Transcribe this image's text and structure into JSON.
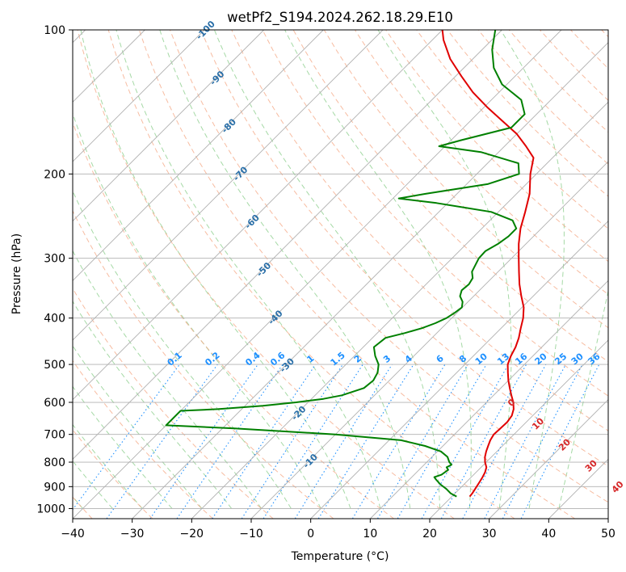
{
  "chart_data": {
    "type": "line",
    "subtype": "skew-t log-p",
    "title": "wetPf2_S194.2024.262.18.29.E10",
    "xlabel": "Temperature (°C)",
    "ylabel": "Pressure (hPa)",
    "xlim": [
      -40,
      50
    ],
    "ylim": [
      1050,
      100
    ],
    "yscale": "log",
    "x_ticks": [
      -40,
      -30,
      -20,
      -10,
      0,
      10,
      20,
      30,
      40,
      50
    ],
    "y_ticks": [
      1000,
      900,
      800,
      700,
      600,
      500,
      400,
      300,
      200,
      100
    ],
    "grid": true,
    "skew_degrees": 45,
    "series": [
      {
        "name": "",
        "color": "#e00000",
        "points": [
          [
            944,
            23.0
          ],
          [
            930,
            22.9
          ],
          [
            900,
            22.5
          ],
          [
            880,
            22.2
          ],
          [
            860,
            21.9
          ],
          [
            840,
            21.5
          ],
          [
            820,
            20.9
          ],
          [
            800,
            19.8
          ],
          [
            780,
            18.9
          ],
          [
            760,
            18.2
          ],
          [
            740,
            17.6
          ],
          [
            720,
            17.0
          ],
          [
            700,
            16.6
          ],
          [
            680,
            16.7
          ],
          [
            660,
            16.8
          ],
          [
            640,
            16.5
          ],
          [
            620,
            15.7
          ],
          [
            600,
            14.5
          ],
          [
            580,
            13.0
          ],
          [
            560,
            11.5
          ],
          [
            540,
            10.0
          ],
          [
            520,
            8.6
          ],
          [
            500,
            7.2
          ],
          [
            480,
            6.3
          ],
          [
            460,
            5.6
          ],
          [
            440,
            4.6
          ],
          [
            420,
            3.3
          ],
          [
            400,
            2.0
          ],
          [
            380,
            0.3
          ],
          [
            360,
            -2.0
          ],
          [
            340,
            -4.3
          ],
          [
            320,
            -6.5
          ],
          [
            300,
            -8.8
          ],
          [
            280,
            -11.2
          ],
          [
            260,
            -13.5
          ],
          [
            240,
            -15.5
          ],
          [
            220,
            -17.8
          ],
          [
            200,
            -21.0
          ],
          [
            185,
            -23.2
          ],
          [
            175,
            -26.4
          ],
          [
            165,
            -30.0
          ],
          [
            155,
            -34.6
          ],
          [
            145,
            -39.5
          ],
          [
            135,
            -44.4
          ],
          [
            125,
            -49.0
          ],
          [
            115,
            -53.8
          ],
          [
            105,
            -58.1
          ],
          [
            100,
            -60.0
          ]
        ]
      },
      {
        "name": "",
        "color": "#008000",
        "points": [
          [
            944,
            20.8
          ],
          [
            930,
            19.3
          ],
          [
            910,
            17.8
          ],
          [
            890,
            16.0
          ],
          [
            870,
            14.5
          ],
          [
            860,
            13.8
          ],
          [
            850,
            14.6
          ],
          [
            830,
            14.9
          ],
          [
            820,
            14.2
          ],
          [
            810,
            14.6
          ],
          [
            800,
            13.8
          ],
          [
            780,
            12.6
          ],
          [
            760,
            10.6
          ],
          [
            740,
            7.0
          ],
          [
            720,
            2.0
          ],
          [
            700,
            -10.0
          ],
          [
            680,
            -28.0
          ],
          [
            670,
            -40.0
          ],
          [
            625,
            -40.0
          ],
          [
            620,
            -34.0
          ],
          [
            610,
            -27.0
          ],
          [
            600,
            -22.0
          ],
          [
            590,
            -18.0
          ],
          [
            580,
            -15.5
          ],
          [
            560,
            -13.0
          ],
          [
            540,
            -12.7
          ],
          [
            520,
            -13.3
          ],
          [
            500,
            -14.5
          ],
          [
            480,
            -16.5
          ],
          [
            460,
            -18.2
          ],
          [
            440,
            -17.8
          ],
          [
            430,
            -15.4
          ],
          [
            420,
            -13.3
          ],
          [
            410,
            -11.9
          ],
          [
            400,
            -10.9
          ],
          [
            390,
            -10.4
          ],
          [
            380,
            -10.1
          ],
          [
            370,
            -10.9
          ],
          [
            360,
            -12.3
          ],
          [
            350,
            -13.0
          ],
          [
            340,
            -12.8
          ],
          [
            330,
            -13.2
          ],
          [
            320,
            -14.4
          ],
          [
            300,
            -15.5
          ],
          [
            290,
            -15.6
          ],
          [
            280,
            -14.7
          ],
          [
            270,
            -14.2
          ],
          [
            260,
            -14.2
          ],
          [
            250,
            -16.2
          ],
          [
            240,
            -21.2
          ],
          [
            230,
            -31.9
          ],
          [
            225,
            -39.0
          ],
          [
            220,
            -35.3
          ],
          [
            210,
            -26.5
          ],
          [
            200,
            -22.9
          ],
          [
            190,
            -24.8
          ],
          [
            180,
            -33.0
          ],
          [
            175,
            -41.0
          ],
          [
            170,
            -38.3
          ],
          [
            160,
            -32.0
          ],
          [
            150,
            -32.0
          ],
          [
            140,
            -35.0
          ],
          [
            130,
            -40.8
          ],
          [
            120,
            -45.0
          ],
          [
            110,
            -48.3
          ],
          [
            100,
            -51.1
          ]
        ]
      }
    ],
    "reference_lines": {
      "dry_adiabat_labels": [
        -100,
        -90,
        -80,
        -70,
        -60,
        -50,
        -40,
        -30,
        -20,
        -10,
        0,
        10,
        20,
        30,
        40
      ],
      "mixing_ratio_labels": [
        "0.1",
        "0.2",
        "0.4",
        "0.6",
        "1",
        "1.5",
        "2",
        "3",
        "4",
        "6",
        "8",
        "10",
        "13",
        "16",
        "20",
        "25",
        "30",
        "36"
      ],
      "dry_adiabat_color": "#2a6fa8",
      "moist_adiabat_color": "#d62728",
      "mixing_ratio_color": "#1e90ff"
    }
  }
}
